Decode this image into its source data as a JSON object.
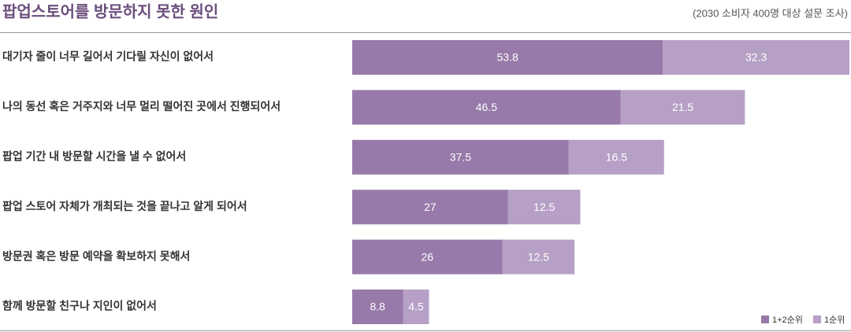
{
  "chart_data": {
    "type": "stacked-bar-horizontal",
    "title": "팝업스토어를 방문하지 못한 원인",
    "subtitle": "(2030 소비자 400명 대상 설문 조사)",
    "categories": [
      "대기자 줄이 너무 길어서 기다릴 자신이 없어서",
      "나의 동선 혹은 거주지와 너무 멀리 떨어진 곳에서 진행되어서",
      "팝업 기간 내 방문할 시간을 낼 수 없어서",
      "팝업 스토어 자체가 개최되는 것을 끝나고 알게 되어서",
      "방문권 혹은 방문 예약을 확보하지 못해서",
      "함께 방문할 친구나 지인이 없어서"
    ],
    "series": [
      {
        "name": "1+2순위",
        "color": "#977aa9",
        "values": [
          53.8,
          46.5,
          37.5,
          27,
          26,
          8.8
        ]
      },
      {
        "name": "1순위",
        "color": "#b7a0c6",
        "values": [
          32.3,
          21.5,
          16.5,
          12.5,
          12.5,
          4.5
        ]
      }
    ],
    "legend": "bottom-right"
  }
}
